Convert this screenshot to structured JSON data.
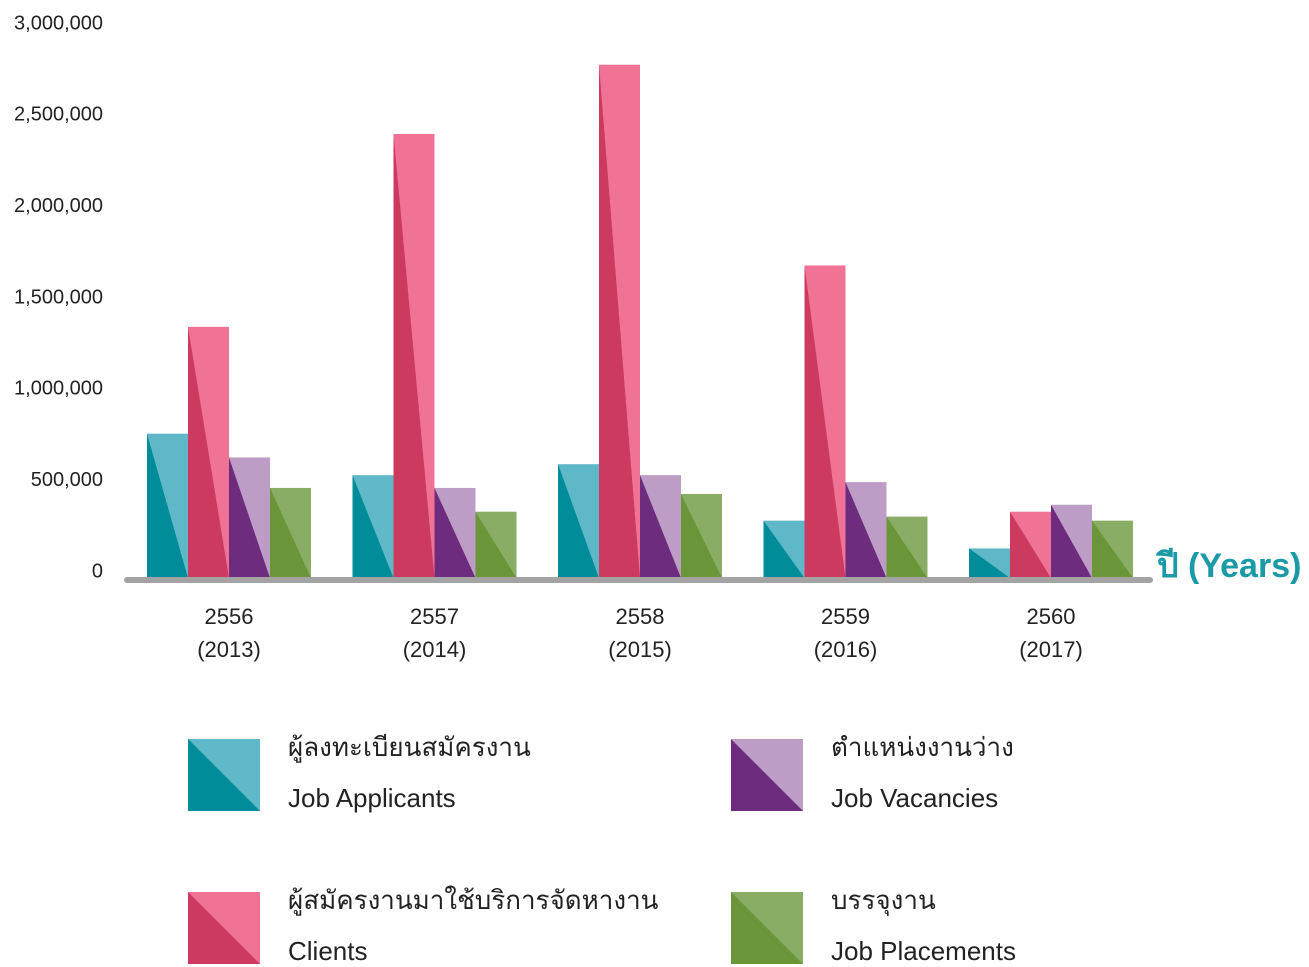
{
  "chart_data": {
    "type": "bar",
    "x_label": "ปี (Years)",
    "categories": [
      [
        "2556",
        "(2013)"
      ],
      [
        "2557",
        "(2014)"
      ],
      [
        "2558",
        "(2015)"
      ],
      [
        "2559",
        "(2016)"
      ],
      [
        "2560",
        "(2017)"
      ]
    ],
    "series": [
      {
        "name": "Job Applicants",
        "name_th": "ผู้ลงทะเบียนสมัครงาน",
        "color": "#5fb8c8",
        "shade": "#008c99",
        "values": [
          790000,
          563000,
          623000,
          314000,
          162000
        ]
      },
      {
        "name": "Clients",
        "name_th": "ผู้สมัครงานมาใช้บริการจัดหางาน",
        "color": "#f07396",
        "shade": "#cc3a60",
        "values": [
          1375000,
          2431000,
          2810000,
          1711000,
          363000
        ]
      },
      {
        "name": "Job Vacancies",
        "name_th": "ตำแหน่งงานว่าง",
        "color": "#bd9cc6",
        "shade": "#6e2c7e",
        "values": [
          660000,
          493000,
          563000,
          525000,
          401000
        ]
      },
      {
        "name": "Job Placements",
        "name_th": "บรรจุงาน",
        "color": "#8aad66",
        "shade": "#6a9539",
        "values": [
          493000,
          363000,
          460000,
          336000,
          314000
        ]
      }
    ],
    "ylim": [
      0,
      3000000
    ],
    "yticks": [
      0,
      {
        "value": 500000,
        "label": "500,000"
      },
      {
        "value": 1000000,
        "label": "1,000,000"
      },
      {
        "value": 1500000,
        "label": "1,500,000"
      },
      {
        "value": 2000000,
        "label": "2,000,000"
      },
      {
        "value": 2500000,
        "label": "2,500,000"
      },
      {
        "value": 3000000,
        "label": "3,000,000"
      }
    ],
    "grid": false
  }
}
